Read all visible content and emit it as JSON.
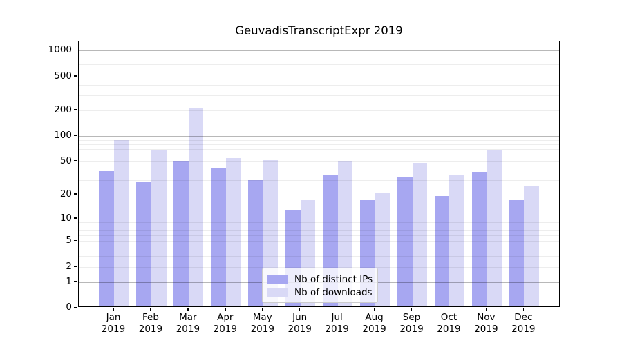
{
  "chart_data": {
    "type": "bar",
    "title": "GeuvadisTranscriptExpr 2019",
    "categories": [
      "Jan",
      "Feb",
      "Mar",
      "Apr",
      "May",
      "Jun",
      "Jul",
      "Aug",
      "Sep",
      "Oct",
      "Nov",
      "Dec"
    ],
    "category_year": "2019",
    "series": [
      {
        "name": "Nb of distinct IPs",
        "color": "#a7a7f1",
        "values": [
          38,
          28,
          50,
          41,
          30,
          13,
          34,
          17,
          32,
          19,
          37,
          17
        ]
      },
      {
        "name": "Nb of downloads",
        "color": "#d9d9f6",
        "values": [
          90,
          67,
          215,
          55,
          52,
          17,
          50,
          21,
          48,
          35,
          67,
          25
        ]
      }
    ],
    "y_ticks": [
      0,
      1,
      2,
      5,
      10,
      20,
      50,
      100,
      200,
      500,
      1000
    ],
    "y_scale": "log10(value+1)",
    "ylim": [
      0,
      1280
    ],
    "xlabel": "",
    "ylabel": "",
    "grid": "horizontal",
    "major_grid_at": [
      1,
      10,
      100,
      1000
    ],
    "legend_position": "bottom-center"
  },
  "colors": {
    "background": "#ffffff",
    "axis": "#000000",
    "major_grid": "#b5b5b5",
    "minor_grid": "#ededed",
    "bar_distinct_ips": "#a7a7f1",
    "bar_downloads": "#d9d9f6"
  }
}
